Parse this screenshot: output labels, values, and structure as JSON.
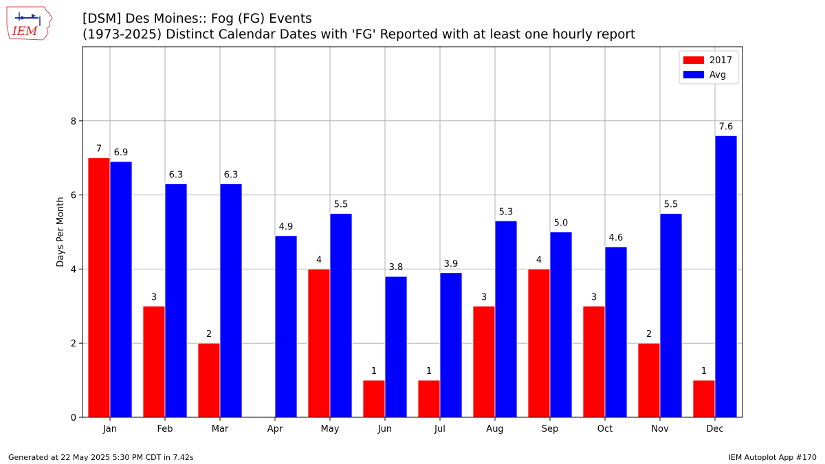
{
  "header": {
    "title": "[DSM] Des Moines:: Fog (FG) Events",
    "subtitle": "(1973-2025) Distinct Calendar Dates with 'FG' Reported with at least one hourly report",
    "logo_text": "IEM"
  },
  "footer": {
    "left": "Generated at 22 May 2025 5:30 PM CDT in 7.42s",
    "right": "IEM Autoplot App #170"
  },
  "chart_data": {
    "type": "bar",
    "title": "[DSM] Des Moines:: Fog (FG) Events",
    "xlabel": "",
    "ylabel": "Days Per Month",
    "ylim": [
      0,
      10
    ],
    "yticks": [
      0,
      2,
      4,
      6,
      8
    ],
    "grid": true,
    "legend_position": "top-right",
    "categories": [
      "Jan",
      "Feb",
      "Mar",
      "Apr",
      "May",
      "Jun",
      "Jul",
      "Aug",
      "Sep",
      "Oct",
      "Nov",
      "Dec"
    ],
    "series": [
      {
        "name": "2017",
        "color": "#ff0000",
        "values": [
          7,
          3,
          2,
          0,
          4,
          1,
          1,
          3,
          4,
          3,
          2,
          1
        ],
        "labels": [
          "7",
          "3",
          "2",
          "",
          "4",
          "1",
          "1",
          "3",
          "4",
          "3",
          "2",
          "1"
        ]
      },
      {
        "name": "Avg",
        "color": "#0000ff",
        "values": [
          6.9,
          6.3,
          6.3,
          4.9,
          5.5,
          3.8,
          3.9,
          5.3,
          5.0,
          4.6,
          5.5,
          7.6
        ],
        "labels": [
          "6.9",
          "6.3",
          "6.3",
          "4.9",
          "5.5",
          "3.8",
          "3.9",
          "5.3",
          "5.0",
          "4.6",
          "5.5",
          "7.6"
        ]
      }
    ]
  }
}
